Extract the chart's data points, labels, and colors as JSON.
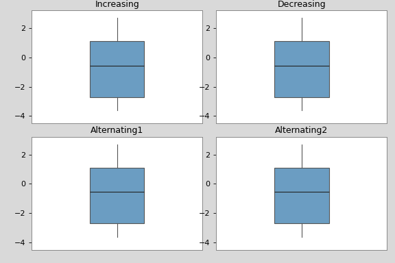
{
  "titles": [
    "Increasing",
    "Decreasing",
    "Alternating1",
    "Alternating2"
  ],
  "box_color": "#6b9dc2",
  "box_edge_color": "#555555",
  "median_color": "#222222",
  "whisker_color": "#555555",
  "ylim": [
    -4.5,
    3.2
  ],
  "yticks": [
    -4,
    -2,
    0,
    2
  ],
  "background_color": "#d9d9d9",
  "axes_background": "#ffffff",
  "box_stats": {
    "Increasing": {
      "whislo": -3.6,
      "q1": -2.7,
      "med": -0.55,
      "q3": 1.1,
      "whishi": 2.7
    },
    "Decreasing": {
      "whislo": -3.6,
      "q1": -2.7,
      "med": -0.55,
      "q3": 1.1,
      "whishi": 2.7
    },
    "Alternating1": {
      "whislo": -3.6,
      "q1": -2.7,
      "med": -0.55,
      "q3": 1.1,
      "whishi": 2.7
    },
    "Alternating2": {
      "whislo": -3.6,
      "q1": -2.7,
      "med": -0.55,
      "q3": 1.1,
      "whishi": 2.7
    }
  },
  "figsize": [
    5.76,
    3.84
  ],
  "dpi": 100,
  "title_fontsize": 9,
  "tick_fontsize": 8,
  "box_width": 0.35,
  "linewidth": 0.8
}
